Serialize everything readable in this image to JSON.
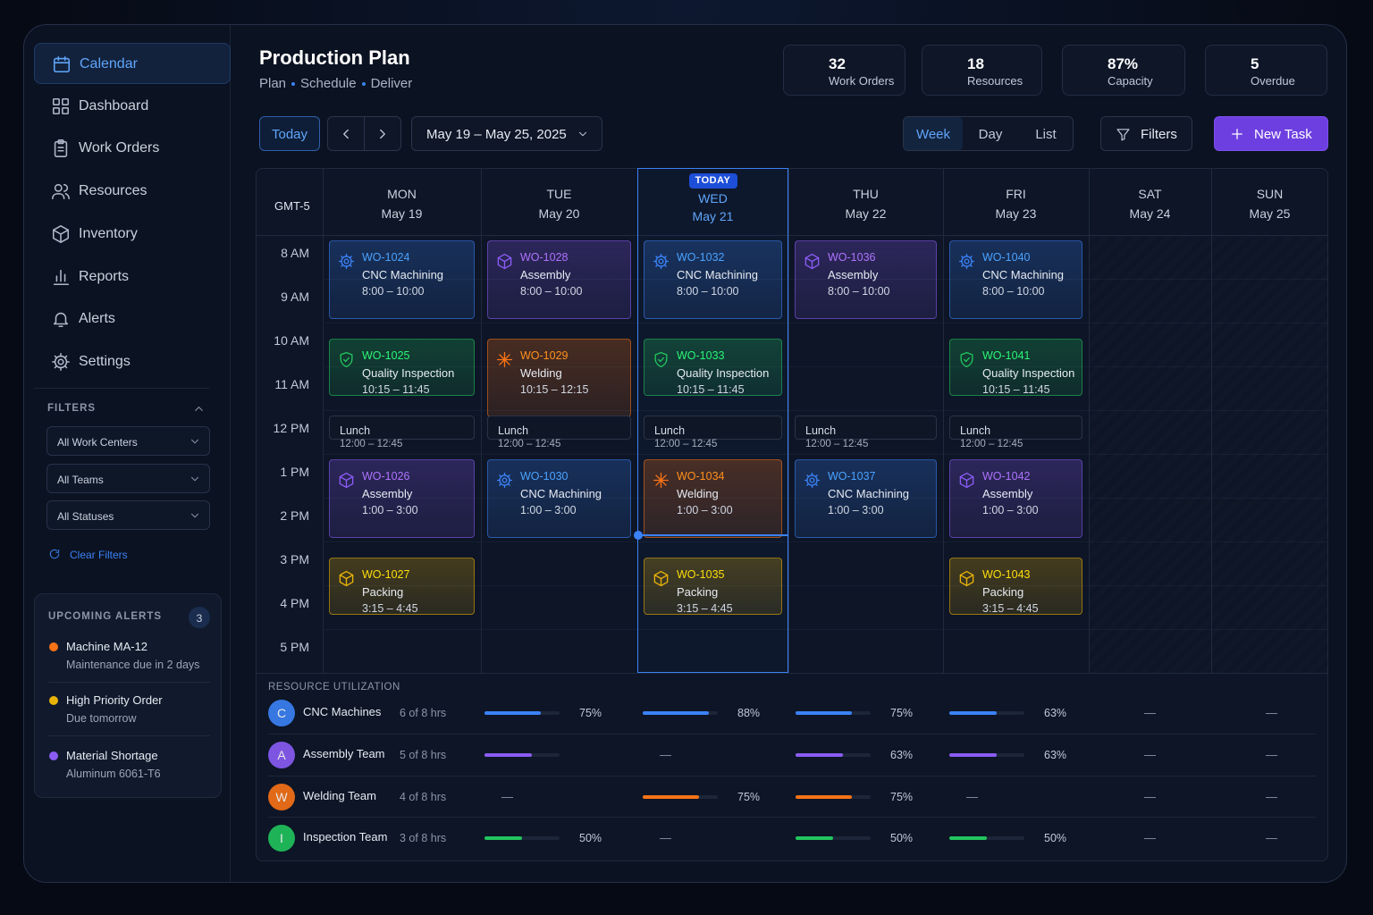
{
  "sidebar": {
    "nav": [
      "Calendar",
      "Dashboard",
      "Work Orders",
      "Resources",
      "Inventory",
      "Reports",
      "Alerts",
      "Settings"
    ],
    "filters": {
      "title": "FILTERS",
      "selects": [
        "All Work Centers",
        "All Teams",
        "All Statuses"
      ],
      "clear": "Clear Filters"
    },
    "alerts": {
      "title": "UPCOMING ALERTS",
      "count": "3",
      "items": [
        {
          "title": "Machine MA-12",
          "detail": "Maintenance due in 2 days",
          "color": "#f97316"
        },
        {
          "title": "High Priority Order",
          "detail": "Due tomorrow",
          "color": "#eab308"
        },
        {
          "title": "Material Shortage",
          "detail": "Aluminum 6061-T6",
          "color": "#8b5cf6"
        }
      ]
    }
  },
  "header": {
    "title": "Production Plan",
    "subtitle": [
      "Plan",
      "Schedule",
      "Deliver"
    ]
  },
  "stats": [
    {
      "value": "32",
      "label": "Work Orders",
      "color": "#60a5fa"
    },
    {
      "value": "18",
      "label": "Resources",
      "color": "#60a5fa"
    },
    {
      "value": "87%",
      "label": "Capacity",
      "color": "#22c55e"
    },
    {
      "value": "5",
      "label": "Overdue",
      "color": "#a78bfa"
    }
  ],
  "toolbar": {
    "today": "Today",
    "range": "May 19 – May 25, 2025",
    "views": [
      "Week",
      "Day",
      "List"
    ],
    "filters": "Filters",
    "new_task": "New Task"
  },
  "calendar": {
    "timezone": "GMT-5",
    "hours": [
      "8 AM",
      "9 AM",
      "10 AM",
      "11 AM",
      "12 PM",
      "1 PM",
      "2 PM",
      "3 PM",
      "4 PM",
      "5 PM"
    ],
    "days": [
      {
        "dow": "MON",
        "date": "May 19",
        "events": [
          {
            "id": "WO-1024",
            "name": "CNC Machining",
            "time": "8:00 – 10:00",
            "color": "#3b82f6"
          },
          {
            "id": "WO-1025",
            "name": "Quality Inspection",
            "time": "10:15 – 11:45",
            "color": "#22c55e"
          },
          {
            "name": "Lunch",
            "time": "12:00 – 12:45"
          },
          {
            "id": "WO-1026",
            "name": "Assembly",
            "time": "1:00 – 3:00",
            "color": "#8b5cf6"
          },
          {
            "id": "WO-1027",
            "name": "Packing",
            "time": "3:15 – 4:45",
            "color": "#eab308"
          }
        ]
      },
      {
        "dow": "TUE",
        "date": "May 20",
        "events": [
          {
            "id": "WO-1028",
            "name": "Assembly",
            "time": "8:00 – 10:00",
            "color": "#8b5cf6"
          },
          {
            "id": "WO-1029",
            "name": "Welding",
            "time": "10:15 – 12:15",
            "color": "#f97316"
          },
          {
            "name": "Lunch",
            "time": "12:00 – 12:45"
          },
          {
            "id": "WO-1030",
            "name": "CNC Machining",
            "time": "1:00 – 3:00",
            "color": "#3b82f6"
          }
        ]
      },
      {
        "badge": "TODAY",
        "dow": "WED",
        "date": "May 21",
        "events": [
          {
            "id": "WO-1032",
            "name": "CNC Machining",
            "time": "8:00 – 10:00",
            "color": "#3b82f6"
          },
          {
            "id": "WO-1033",
            "name": "Quality Inspection",
            "time": "10:15 – 11:45",
            "color": "#22c55e"
          },
          {
            "name": "Lunch",
            "time": "12:00 – 12:45"
          },
          {
            "id": "WO-1034",
            "name": "Welding",
            "time": "1:00 – 3:00",
            "color": "#f97316"
          },
          {
            "id": "WO-1035",
            "name": "Packing",
            "time": "3:15 – 4:45",
            "color": "#eab308"
          }
        ]
      },
      {
        "dow": "THU",
        "date": "May 22",
        "events": [
          {
            "id": "WO-1036",
            "name": "Assembly",
            "time": "8:00 – 10:00",
            "color": "#8b5cf6"
          },
          {
            "name": "Lunch",
            "time": "12:00 – 12:45"
          },
          {
            "id": "WO-1037",
            "name": "CNC Machining",
            "time": "1:00 – 3:00",
            "color": "#3b82f6"
          }
        ]
      },
      {
        "dow": "FRI",
        "date": "May 23",
        "events": [
          {
            "id": "WO-1040",
            "name": "CNC Machining",
            "time": "8:00 – 10:00",
            "color": "#3b82f6"
          },
          {
            "id": "WO-1041",
            "name": "Quality Inspection",
            "time": "10:15 – 11:45",
            "color": "#22c55e"
          },
          {
            "name": "Lunch",
            "time": "12:00 – 12:45"
          },
          {
            "id": "WO-1042",
            "name": "Assembly",
            "time": "1:00 – 3:00",
            "color": "#8b5cf6"
          },
          {
            "id": "WO-1043",
            "name": "Packing",
            "time": "3:15 – 4:45",
            "color": "#eab308"
          }
        ]
      },
      {
        "dow": "SAT",
        "date": "May 24",
        "events": []
      },
      {
        "dow": "SUN",
        "date": "May 25",
        "events": []
      }
    ]
  },
  "utilization": {
    "title": "RESOURCE UTILIZATION",
    "rows": [
      {
        "initial": "C",
        "name": "CNC Machines",
        "hours": "6 of 8 hrs",
        "color": "#3b82f6",
        "cells": [
          {
            "value": 75,
            "label": "75%"
          },
          {
            "value": 88,
            "label": "88%"
          },
          {
            "value": 75,
            "label": "75%"
          },
          {
            "value": 63,
            "label": "63%"
          },
          "—",
          "—"
        ]
      },
      {
        "initial": "A",
        "name": "Assembly Team",
        "hours": "5 of 8 hrs",
        "color": "#8b5cf6",
        "cells": [
          {
            "value": 63
          },
          "—",
          {
            "value": 63,
            "label": "63%"
          },
          {
            "value": 63,
            "label": "63%"
          },
          "—",
          "—"
        ]
      },
      {
        "initial": "W",
        "name": "Welding Team",
        "hours": "4 of 8 hrs",
        "color": "#f97316",
        "cells": [
          "—",
          {
            "value": 75,
            "label": "75%"
          },
          {
            "value": 75,
            "label": "75%"
          },
          "—",
          "—",
          "—"
        ]
      },
      {
        "initial": "I",
        "name": "Inspection Team",
        "hours": "3 of 8 hrs",
        "color": "#22c55e",
        "cells": [
          {
            "value": 50,
            "label": "50%"
          },
          "—",
          {
            "value": 50,
            "label": "50%"
          },
          {
            "value": 50,
            "label": "50%"
          },
          "—",
          "—"
        ]
      }
    ]
  }
}
